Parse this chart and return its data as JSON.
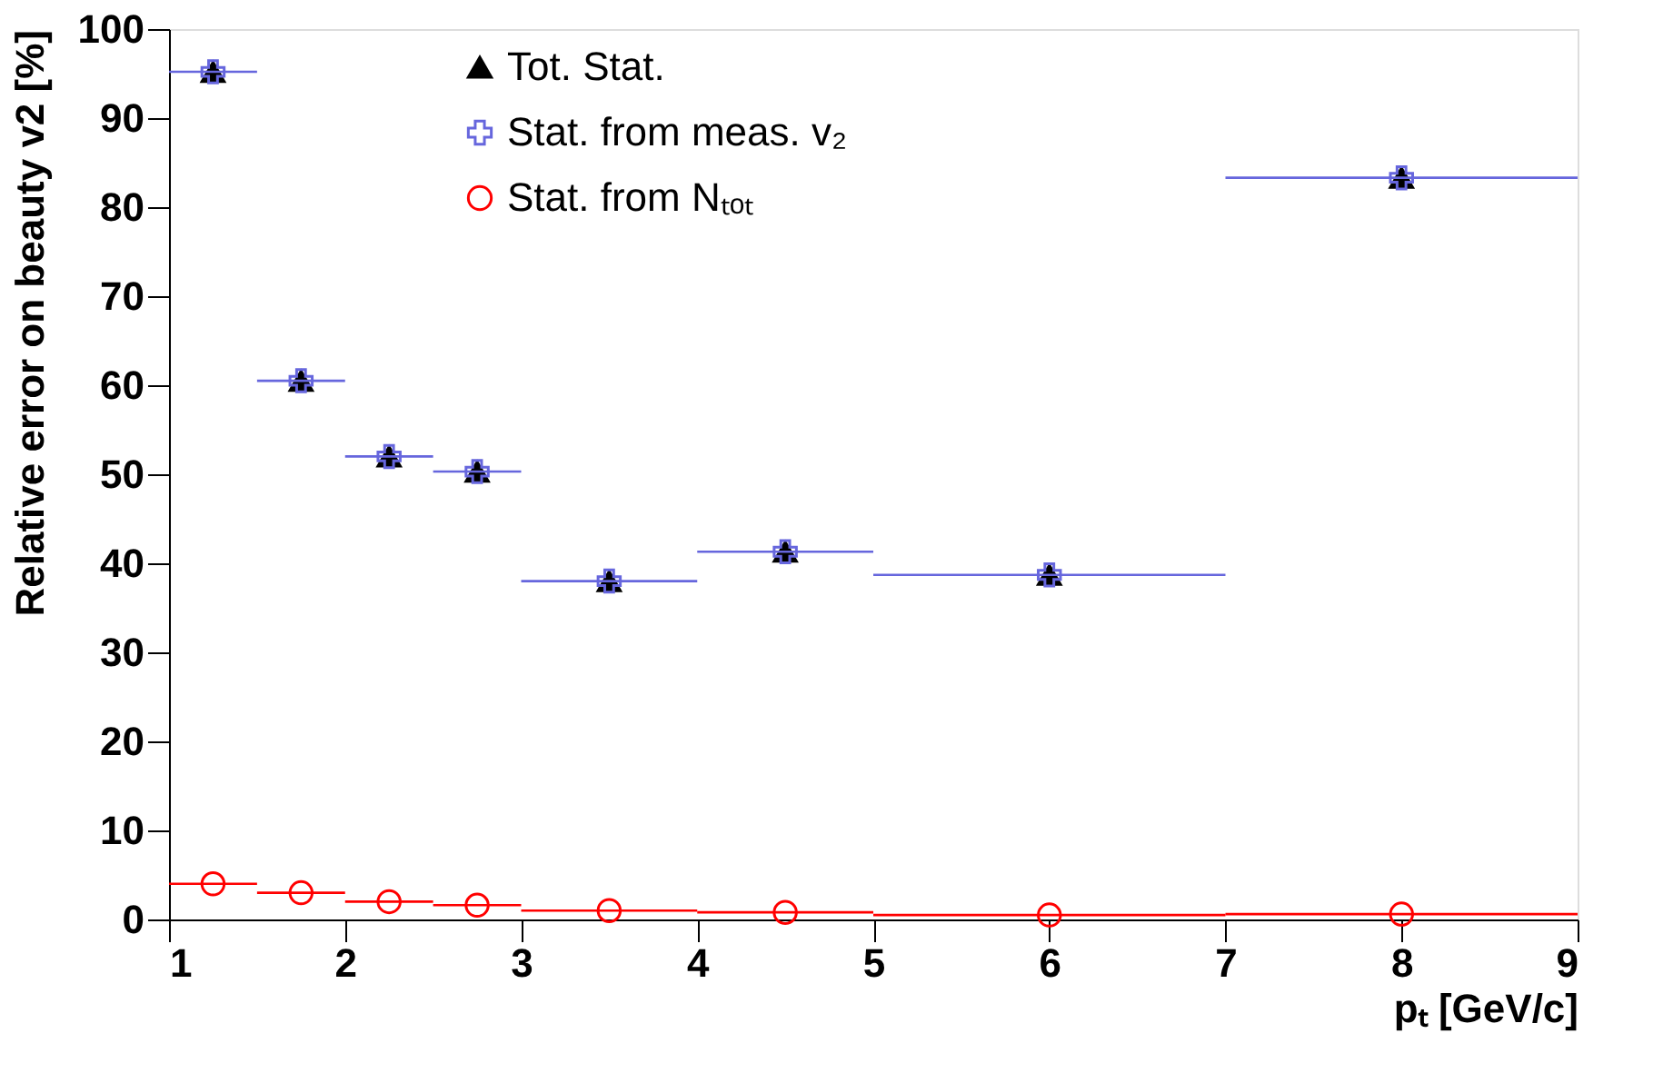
{
  "chart_data": {
    "type": "scatter",
    "xlabel": "pₜ [GeV/c]",
    "ylabel": "Relative error on beauty v2 [%]",
    "xlim": [
      1,
      9
    ],
    "xticks": [
      1,
      2,
      3,
      4,
      5,
      6,
      7,
      8,
      9
    ],
    "ylim": [
      0,
      100
    ],
    "yticks": [
      0,
      10,
      20,
      30,
      40,
      50,
      60,
      70,
      80,
      90,
      100
    ],
    "grid": false,
    "legend": "top",
    "series": [
      {
        "name": "Tot. Stat.",
        "color": "#000000",
        "marker": "triangle",
        "x": [
          1.25,
          1.75,
          2.25,
          2.75,
          3.5,
          4.5,
          6,
          8
        ],
        "values": [
          95.2,
          60.5,
          52,
          50.3,
          38,
          41.3,
          38.7,
          83.3
        ]
      },
      {
        "name": "Stat. from meas. v₂",
        "color": "#6666dd",
        "marker": "cross",
        "x": [
          1.25,
          1.75,
          2.25,
          2.75,
          3.5,
          4.5,
          6,
          8
        ],
        "values": [
          95.2,
          60.5,
          52,
          50.3,
          38,
          41.3,
          38.7,
          83.3
        ],
        "xerrors": [
          0.25,
          0.25,
          0.25,
          0.25,
          0.5,
          0.5,
          1,
          1
        ]
      },
      {
        "name": "Stat. from Nₜₒₜ",
        "color": "#ff0000",
        "marker": "circle",
        "x": [
          1.25,
          1.75,
          2.25,
          2.75,
          3.5,
          4.5,
          6,
          8
        ],
        "values": [
          4.0,
          3.0,
          2.0,
          1.6,
          1.0,
          0.8,
          0.5,
          0.6
        ],
        "xerrors": [
          0.25,
          0.25,
          0.25,
          0.25,
          0.5,
          0.5,
          1,
          1
        ]
      }
    ]
  }
}
